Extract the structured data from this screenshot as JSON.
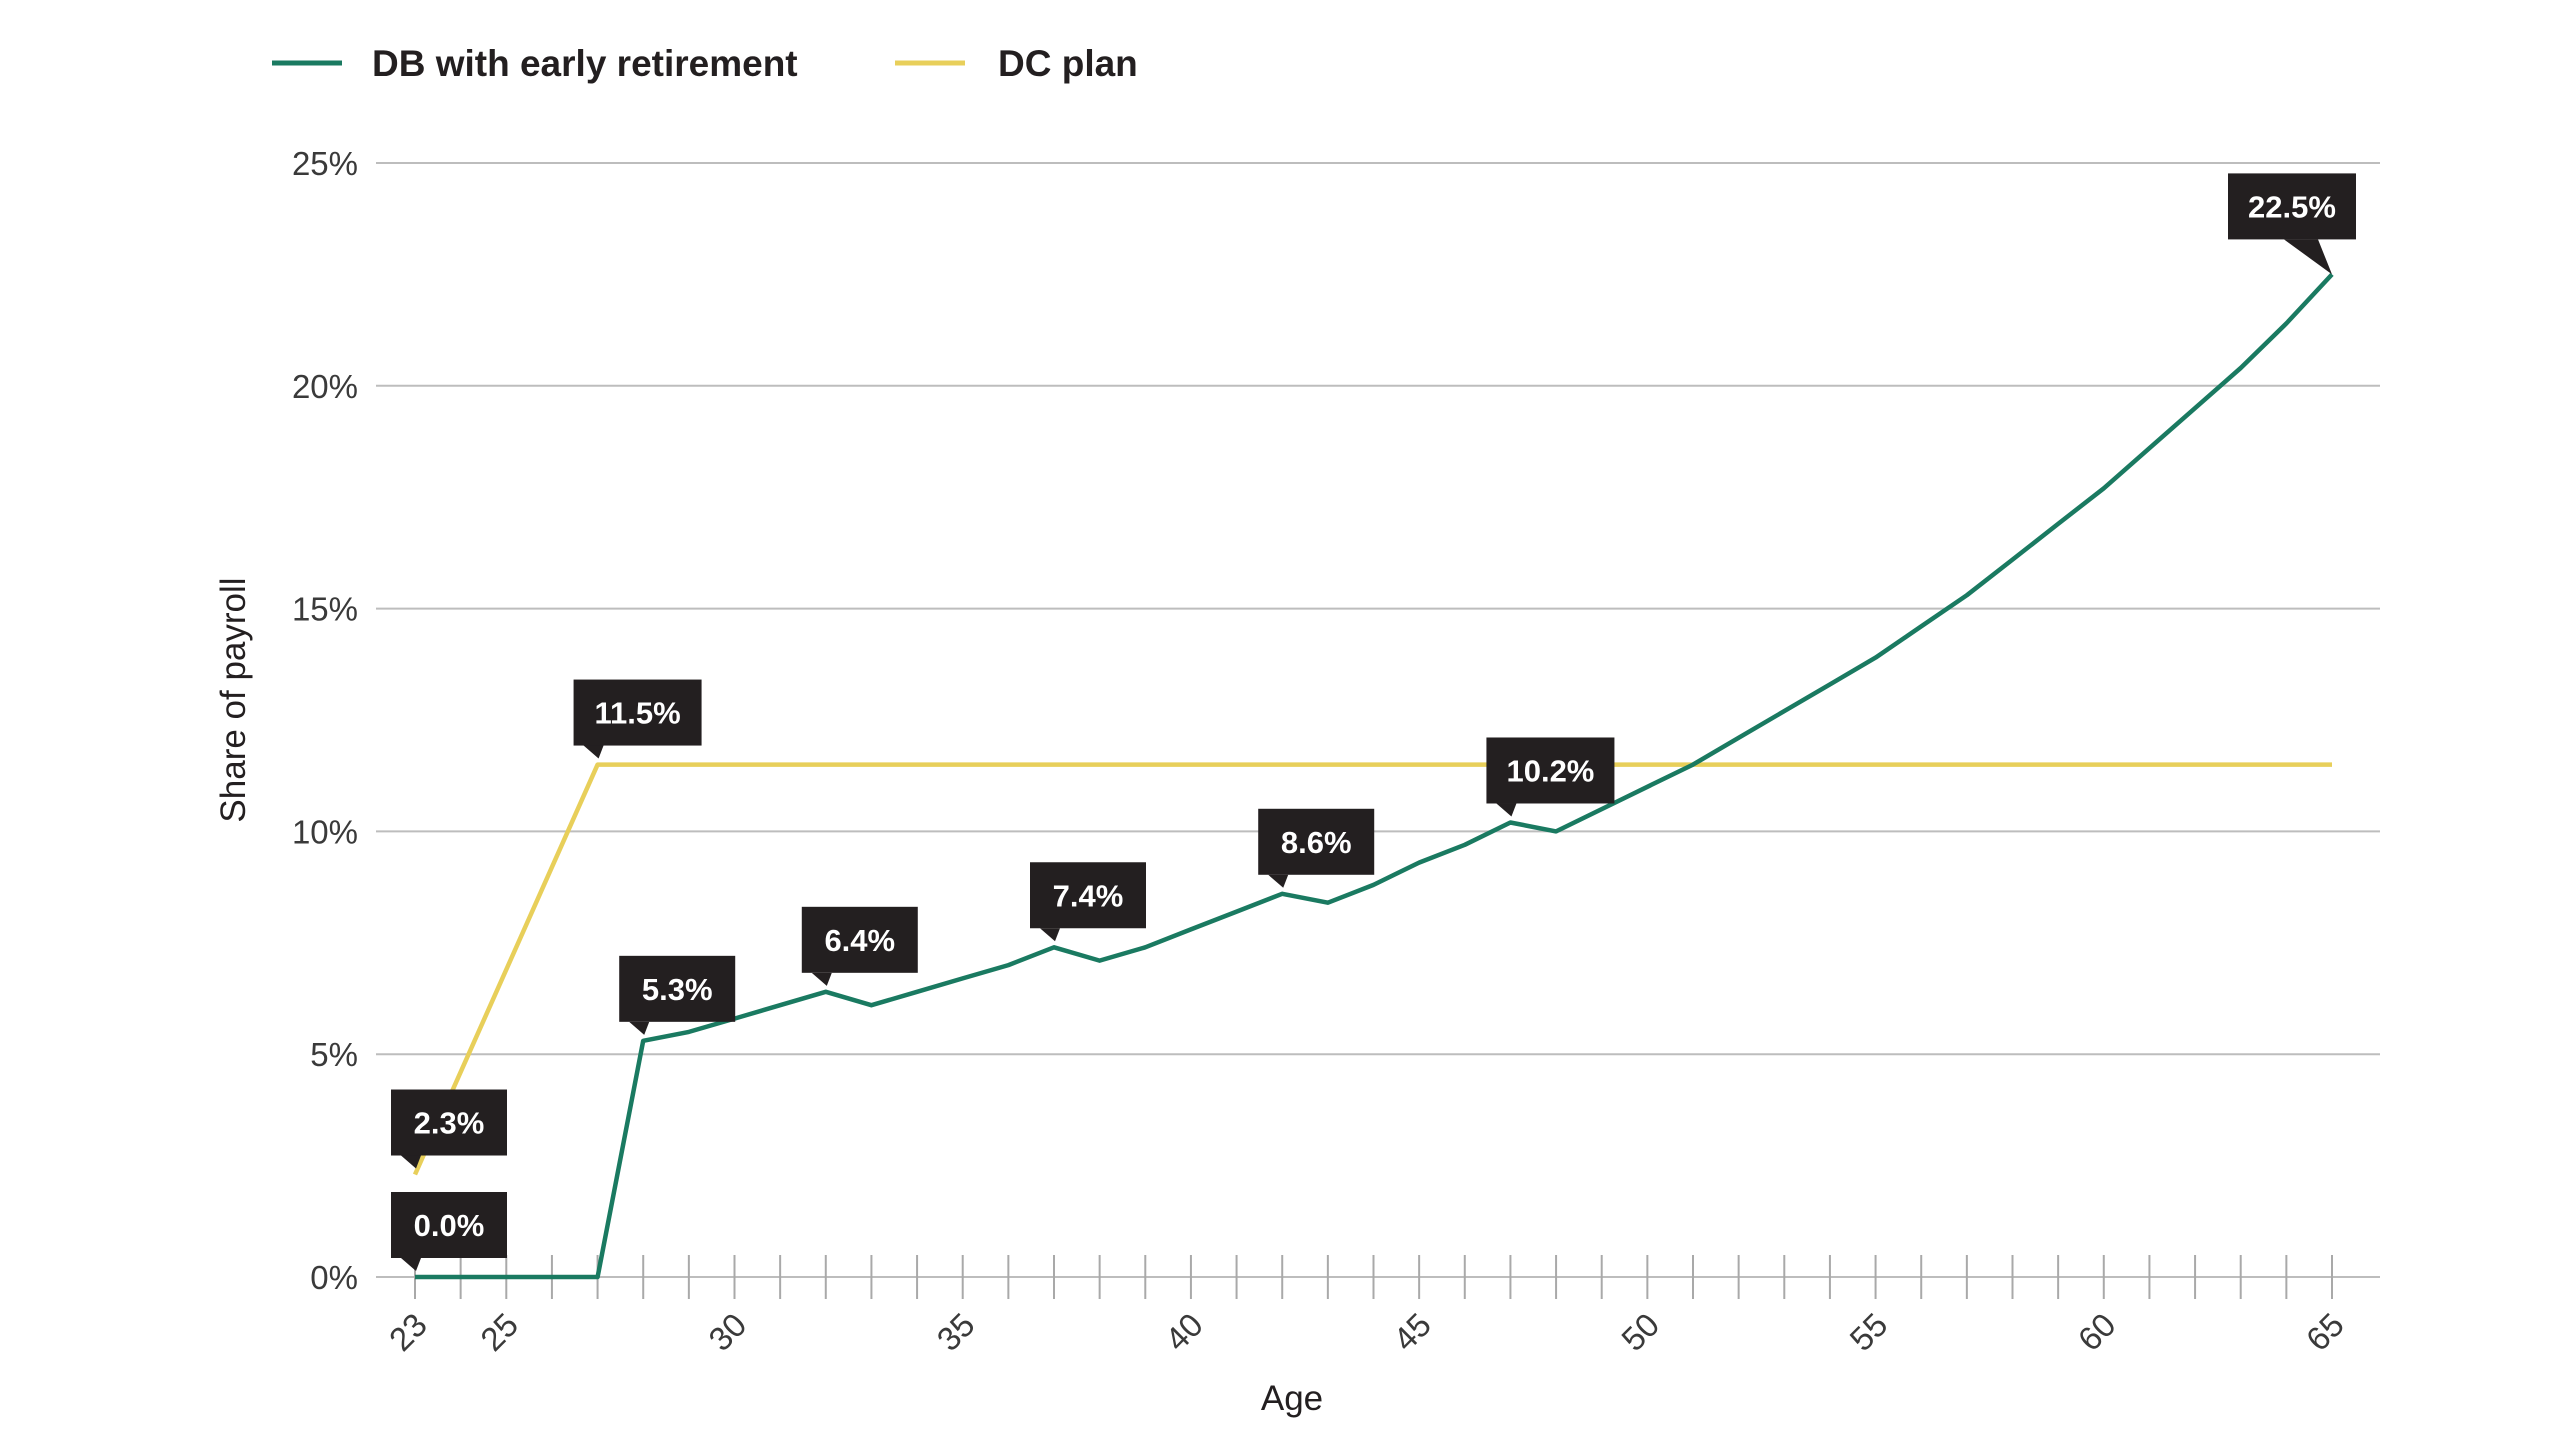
{
  "chart_data": {
    "type": "line",
    "title": "",
    "xlabel": "Age",
    "ylabel": "Share of payroll",
    "xlim": [
      23,
      65
    ],
    "ylim": [
      0,
      25
    ],
    "x_tick_labels": [
      "23",
      "25",
      "30",
      "35",
      "40",
      "45",
      "50",
      "55",
      "60",
      "65"
    ],
    "y_tick_labels": [
      "0%",
      "5%",
      "10%",
      "15%",
      "20%",
      "25%"
    ],
    "grid": "horizontal",
    "legend_position": "top-left",
    "series": [
      {
        "name": "DB with early retirement",
        "color": "#1a7a61",
        "x": [
          23,
          24,
          25,
          26,
          27,
          28,
          29,
          30,
          31,
          32,
          33,
          34,
          35,
          36,
          37,
          38,
          39,
          40,
          41,
          42,
          43,
          44,
          45,
          46,
          47,
          48,
          49,
          50,
          51,
          52,
          53,
          54,
          55,
          56,
          57,
          58,
          59,
          60,
          61,
          62,
          63,
          64,
          65
        ],
        "y": [
          0,
          0,
          0,
          0,
          0,
          5.3,
          5.5,
          5.8,
          6.1,
          6.4,
          6.1,
          6.4,
          6.7,
          7.0,
          7.4,
          7.1,
          7.4,
          7.8,
          8.2,
          8.6,
          8.4,
          8.8,
          9.3,
          9.7,
          10.2,
          10.0,
          10.5,
          11.0,
          11.5,
          12.1,
          12.7,
          13.3,
          13.9,
          14.6,
          15.3,
          16.1,
          16.9,
          17.7,
          18.6,
          19.5,
          20.4,
          21.4,
          22.5
        ]
      },
      {
        "name": "DC plan",
        "color": "#e8cf5a",
        "x": [
          23,
          27,
          65
        ],
        "y": [
          2.3,
          11.5,
          11.5
        ]
      }
    ],
    "annotations": [
      {
        "label": "0.0%",
        "x": 23,
        "y": 0.0,
        "series": 0
      },
      {
        "label": "2.3%",
        "x": 23,
        "y": 2.3,
        "series": 1
      },
      {
        "label": "11.5%",
        "x": 27,
        "y": 11.5,
        "series": 1
      },
      {
        "label": "5.3%",
        "x": 28,
        "y": 5.3,
        "series": 0
      },
      {
        "label": "6.4%",
        "x": 32,
        "y": 6.4,
        "series": 0
      },
      {
        "label": "7.4%",
        "x": 37,
        "y": 7.4,
        "series": 0
      },
      {
        "label": "8.6%",
        "x": 42,
        "y": 8.6,
        "series": 0
      },
      {
        "label": "10.2%",
        "x": 47,
        "y": 10.2,
        "series": 0
      },
      {
        "label": "22.5%",
        "x": 65,
        "y": 22.5,
        "series": 0
      }
    ]
  }
}
